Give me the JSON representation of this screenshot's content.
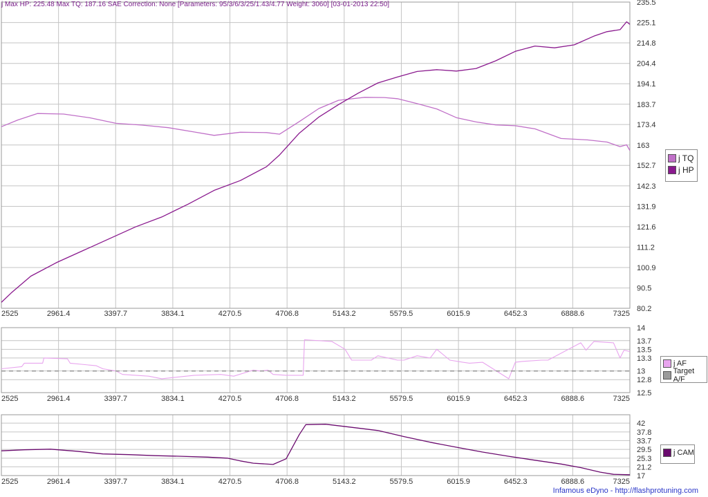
{
  "title": "j Max HP: 225.48 Max TQ: 187.16 SAE Correction: None [Parameters: 95/3/6/3/25/1.43/4.77 Weight: 3060] [03-01-2013 22:50]",
  "footer": "Infamous eDyno - http://flashprotuning.com",
  "colors": {
    "tq": "#c070c8",
    "hp": "#8a1a8e",
    "af": "#e8a4ee",
    "target_af": "#9a9a9a",
    "cam": "#6a0a6e",
    "grid": "#c4c4c4"
  },
  "chart_data": [
    {
      "type": "line",
      "title": "",
      "xlim": [
        2525,
        7325
      ],
      "ylim": [
        80.2,
        235.5
      ],
      "x_ticks": [
        "2525",
        "2961.4",
        "3397.7",
        "3834.1",
        "4270.5",
        "4706.8",
        "5143.2",
        "5579.5",
        "6015.9",
        "6452.3",
        "6888.6",
        "7325"
      ],
      "y_ticks": [
        "80.2",
        "90.5",
        "100.9",
        "111.2",
        "121.6",
        "131.9",
        "142.3",
        "152.7",
        "163",
        "173.4",
        "183.7",
        "194.1",
        "204.4",
        "214.8",
        "225.1",
        "235.5"
      ],
      "legend": "right",
      "series": [
        {
          "name": "j TQ",
          "x": [
            2525,
            2650,
            2800,
            3000,
            3200,
            3400,
            3600,
            3800,
            4000,
            4150,
            4350,
            4550,
            4650,
            4800,
            4950,
            5100,
            5300,
            5450,
            5550,
            5700,
            5850,
            6000,
            6150,
            6300,
            6450,
            6600,
            6800,
            7000,
            7150,
            7250,
            7300,
            7325
          ],
          "y": [
            172.3,
            175.7,
            179,
            178.7,
            176.8,
            174,
            173.1,
            171.8,
            169.6,
            167.9,
            169.5,
            169.3,
            168.5,
            174.9,
            181.5,
            185.7,
            187.2,
            187.1,
            186.5,
            184,
            181.3,
            176.9,
            174.7,
            173.2,
            172.8,
            171.2,
            166.3,
            165.6,
            164.5,
            162.2,
            163.1,
            160.2
          ]
        },
        {
          "name": "j HP",
          "x": [
            2525,
            2600,
            2750,
            2950,
            3150,
            3350,
            3550,
            3750,
            3950,
            4150,
            4350,
            4550,
            4650,
            4800,
            4950,
            5100,
            5250,
            5400,
            5550,
            5700,
            5850,
            6000,
            6150,
            6300,
            6450,
            6600,
            6750,
            6900,
            7050,
            7150,
            7250,
            7300,
            7325
          ],
          "y": [
            83.2,
            88,
            96.5,
            103.5,
            109.5,
            115.5,
            121.5,
            126.5,
            133,
            140,
            145,
            152,
            158,
            169,
            177.2,
            183.5,
            189.3,
            194.5,
            197.5,
            200.3,
            201.2,
            200.5,
            201.8,
            205.7,
            210.5,
            213.2,
            212.3,
            213.8,
            218.2,
            220.5,
            221.5,
            225.5,
            224.2
          ]
        }
      ]
    },
    {
      "type": "line",
      "title": "",
      "xlim": [
        2525,
        7325
      ],
      "ylim": [
        12.5,
        14
      ],
      "x_ticks": [
        "2525",
        "2961.4",
        "3397.7",
        "3834.1",
        "4270.5",
        "4706.8",
        "5143.2",
        "5579.5",
        "6015.9",
        "6452.3",
        "6888.6",
        "7325"
      ],
      "y_ticks": [
        "12.5",
        "12.8",
        "13",
        "13.3",
        "13.5",
        "13.7",
        "14"
      ],
      "legend": "right",
      "series": [
        {
          "name": "j AF",
          "x": [
            2525,
            2680,
            2700,
            2840,
            2850,
            3030,
            3050,
            3250,
            3300,
            3400,
            3450,
            3650,
            3750,
            4000,
            4200,
            4300,
            4450,
            4500,
            4560,
            4600,
            4700,
            4800,
            4830,
            4840,
            5050,
            5150,
            5200,
            5350,
            5400,
            5550,
            5600,
            5700,
            5800,
            5850,
            5950,
            6050,
            6100,
            6200,
            6400,
            6450,
            6500,
            6650,
            6700,
            6950,
            6990,
            7050,
            7200,
            7250,
            7280,
            7325
          ],
          "y": [
            13.05,
            13.1,
            13.18,
            13.18,
            13.3,
            13.28,
            13.18,
            13.12,
            13.05,
            13,
            12.92,
            12.88,
            12.82,
            12.9,
            12.92,
            12.88,
            13.02,
            13,
            13.02,
            12.92,
            12.9,
            12.9,
            12.9,
            13.72,
            13.68,
            13.5,
            13.25,
            13.25,
            13.35,
            13.25,
            13.25,
            13.35,
            13.3,
            13.5,
            13.25,
            13.2,
            13.18,
            13.2,
            12.82,
            13.2,
            13.22,
            13.25,
            13.25,
            13.65,
            13.48,
            13.68,
            13.65,
            13.3,
            13.48,
            13.45
          ]
        },
        {
          "name": "Target A/F",
          "x": [
            2525,
            7325
          ],
          "y": [
            13,
            13
          ]
        }
      ]
    },
    {
      "type": "line",
      "title": "",
      "xlim": [
        2525,
        7325
      ],
      "ylim": [
        17,
        46
      ],
      "x_ticks": [
        "2525",
        "2961.4",
        "3397.7",
        "3834.1",
        "4270.5",
        "4706.8",
        "5143.2",
        "5579.5",
        "6015.9",
        "6452.3",
        "6888.6",
        "7325"
      ],
      "y_ticks": [
        "17",
        "21.2",
        "25.3",
        "29.5",
        "33.7",
        "37.8",
        "42"
      ],
      "legend": "right",
      "series": [
        {
          "name": "j CAM",
          "x": [
            2525,
            2700,
            2900,
            3100,
            3300,
            3500,
            3700,
            3900,
            4100,
            4250,
            4350,
            4450,
            4600,
            4700,
            4800,
            4850,
            5000,
            5200,
            5400,
            5600,
            5800,
            6000,
            6200,
            6400,
            6600,
            6800,
            6950,
            7100,
            7200,
            7325
          ],
          "y": [
            28.8,
            29.3,
            29.6,
            28.6,
            27.3,
            27,
            26.5,
            26.2,
            25.8,
            25.3,
            24,
            22.9,
            22.3,
            25,
            36.5,
            41.3,
            41.5,
            40,
            38.5,
            35.6,
            32.9,
            30.5,
            28.2,
            26.2,
            24.3,
            22.5,
            20.8,
            18.6,
            17.6,
            17.4
          ]
        }
      ]
    }
  ]
}
